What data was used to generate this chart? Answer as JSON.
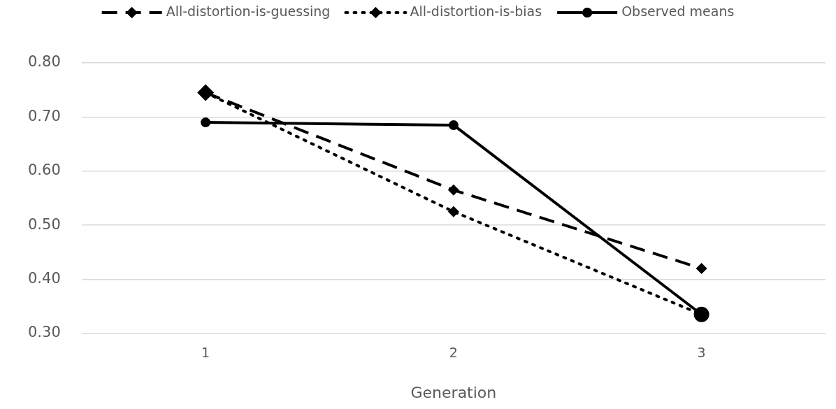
{
  "chart_data": {
    "type": "line",
    "xlabel": "Generation",
    "categories": [
      "1",
      "2",
      "3"
    ],
    "series": [
      {
        "name": "All-distortion-is-guessing",
        "color": "#000000",
        "values": [
          0.745,
          0.565,
          0.42
        ],
        "marker": "diamond",
        "line_style": "dashed"
      },
      {
        "name": "All-distortion-is-bias",
        "color": "#000000",
        "values": [
          0.745,
          0.525,
          0.335
        ],
        "marker": "diamond",
        "line_style": "dotted"
      },
      {
        "name": "Observed means",
        "color": "#000000",
        "values": [
          0.69,
          0.685,
          0.335
        ],
        "marker": "circle",
        "line_style": "solid"
      }
    ],
    "ylim": [
      0.3,
      0.8
    ],
    "yticks": [
      {
        "value": 0.3,
        "label": "0.30"
      },
      {
        "value": 0.4,
        "label": "0.40"
      },
      {
        "value": 0.5,
        "label": "0.50"
      },
      {
        "value": 0.6,
        "label": "0.60"
      },
      {
        "value": 0.7,
        "label": "0.70"
      },
      {
        "value": 0.8,
        "label": "0.80"
      }
    ],
    "grid": "y",
    "legend": "top"
  }
}
